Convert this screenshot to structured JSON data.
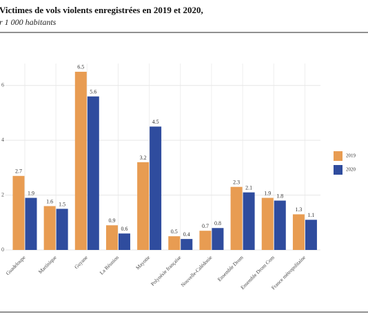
{
  "chart_data": {
    "type": "bar",
    "title": "Victimes de vols violents enregistrées en 2019 et 2020,",
    "subtitle": "r 1 000 habitants",
    "categories": [
      "Guadeloupe",
      "Martinique",
      "Guyane",
      "La Réunion",
      "Mayotte",
      "Polynésie française",
      "Nouvelle-Calédonie",
      "Ensemble Drom",
      "Ensemble Drom Com",
      "France métropolitaine"
    ],
    "series": [
      {
        "name": "2019",
        "color": "#e89c52",
        "values": [
          2.7,
          1.6,
          6.5,
          0.9,
          3.2,
          0.5,
          0.7,
          2.3,
          1.9,
          1.3
        ]
      },
      {
        "name": "2020",
        "color": "#2f4c9e",
        "values": [
          1.9,
          1.5,
          5.6,
          0.6,
          4.5,
          0.4,
          0.8,
          2.1,
          1.8,
          1.1
        ]
      }
    ],
    "ylim": [
      0,
      6.8
    ],
    "yticks": [
      0,
      2,
      4,
      6
    ],
    "grid": true,
    "legend": "right"
  }
}
